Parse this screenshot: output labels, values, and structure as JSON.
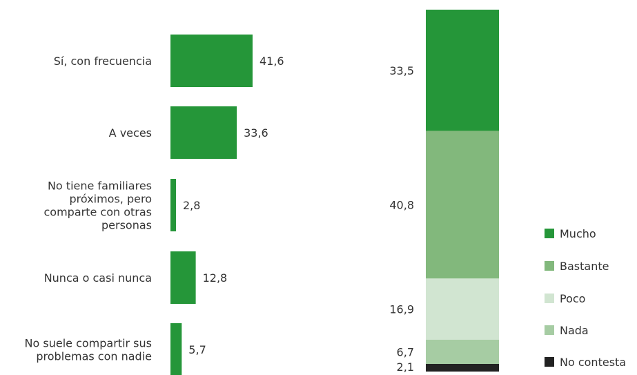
{
  "chart_data": [
    {
      "type": "bar",
      "orientation": "horizontal",
      "categories": [
        "Sí, con frecuencia",
        "A veces",
        "No tiene familiares próximos, pero comparte con otras personas",
        "Nunca o casi nunca",
        "No suele compartir sus problemas con nadie"
      ],
      "category_lines": [
        [
          "Sí, con frecuencia"
        ],
        [
          "A veces"
        ],
        [
          "No tiene familiares",
          "próximos, pero",
          "comparte con otras",
          "personas"
        ],
        [
          "Nunca o casi nunca"
        ],
        [
          "No suele compartir sus",
          "problemas con nadie"
        ]
      ],
      "values": [
        41.6,
        33.6,
        2.8,
        12.8,
        5.7
      ],
      "value_labels": [
        "41,6",
        "33,6",
        "2,8",
        "12,8",
        "5,7"
      ],
      "color": "#259639",
      "xlim": [
        0,
        45
      ],
      "grid": false,
      "axes_visible": false
    },
    {
      "type": "bar",
      "stacked": true,
      "orientation": "vertical",
      "categories": [
        ""
      ],
      "series": [
        {
          "name": "Mucho",
          "values": [
            33.5
          ],
          "label": "33,5",
          "color": "#259639"
        },
        {
          "name": "Bastante",
          "values": [
            40.8
          ],
          "label": "40,8",
          "color": "#82b87c"
        },
        {
          "name": "Poco",
          "values": [
            16.9
          ],
          "label": "16,9",
          "color": "#d1e5d1"
        },
        {
          "name": "Nada",
          "values": [
            6.7
          ],
          "label": "6,7",
          "color": "#a6cca3"
        },
        {
          "name": "No contesta",
          "values": [
            2.1
          ],
          "label": "2,1",
          "color": "#222222"
        }
      ],
      "legend_position": "right",
      "grid": false,
      "axes_visible": false
    }
  ]
}
